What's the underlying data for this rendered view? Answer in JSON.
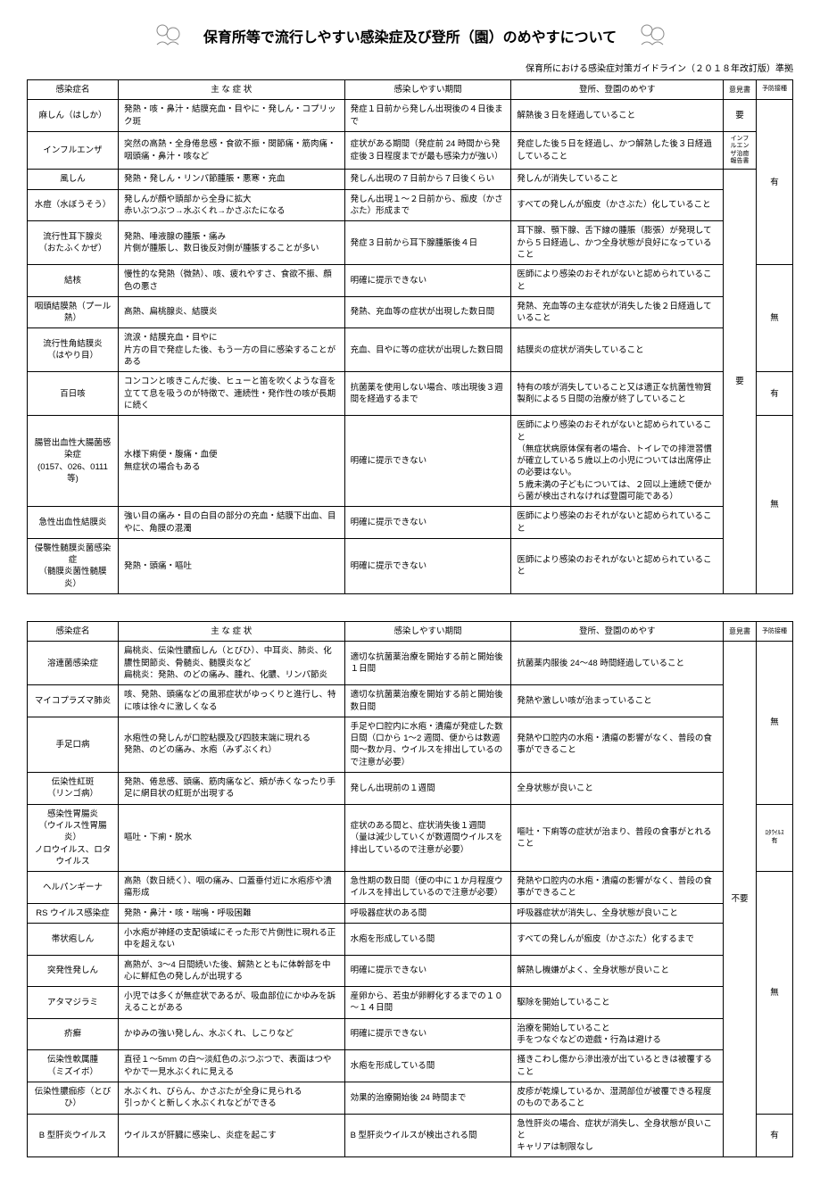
{
  "title": "保育所等で流行しやすい感染症及び登所（園）のめやすについて",
  "subtitle": "保育所における感染症対策ガイドライン（２０１８年改訂版）準拠",
  "headers": {
    "name": "感染症名",
    "symptom": "主 な 症 状",
    "period": "感染しやすい期間",
    "return": "登所、登園のめやす",
    "cert": "意見書",
    "vacc": "予防接種"
  },
  "table1": [
    {
      "name": "麻しん（はしか）",
      "symptom": "発熱・咳・鼻汁・結膜充血・目やに・発しん・コプリック斑",
      "period": "発症１日前から発しん出現後の４日後まで",
      "return": "解熱後３日を経過していること",
      "cert": "要",
      "vacc_note": ""
    },
    {
      "name": "インフルエンザ",
      "symptom": "突然の高熱・全身倦怠感・食欲不振・関節痛・筋肉痛・咽頭痛・鼻汁・咳など",
      "period": "症状がある期間（発症前 24 時間から発症後３日程度までが最も感染力が強い）",
      "return": "発症した後５日を経過し、かつ解熱した後３日経過していること",
      "vacc_note": "インフルエンザ治癒報告書"
    },
    {
      "name": "風しん",
      "symptom": "発熱・発しん・リンパ節腫脹・悪寒・充血",
      "period": "発しん出現の７日前から７日後くらい",
      "return": "発しんが消失していること"
    },
    {
      "name": "水痘（水ぼうそう）",
      "symptom": "発しんが顔や頭部から全身に拡大\n赤いぶつぶつ→水ぶくれ→かさぶたになる",
      "period": "発しん出現１～２日前から、痂皮（かさぶた）形成まで",
      "return": "すべての発しんが痂皮（かさぶた）化していること",
      "vacc": "有"
    },
    {
      "name": "流行性耳下腺炎\n（おたふくかぜ）",
      "symptom": "発熱、唾液腺の腫脹・痛み\n片側が腫脹し、数日後反対側が腫脹することが多い",
      "period": "発症３日前から耳下腺腫脹後４日",
      "return": "耳下腺、顎下腺、舌下線の腫脹（膨張）が発現してから５日経過し、かつ全身状態が良好になっていること"
    },
    {
      "name": "結核",
      "symptom": "慢性的な発熱（微熱）、咳、疲れやすさ、食欲不振、顔色の悪さ",
      "period": "明確に提示できない",
      "return": "医師により感染のおそれがないと認められていること"
    },
    {
      "name": "咽頭結膜熱（プール熱）",
      "symptom": "高熱、扁桃腺炎、結膜炎",
      "period": "発熱、充血等の症状が出現した数日間",
      "return": "発熱、充血等の主な症状が消失した後２日経過していること",
      "vacc": "無"
    },
    {
      "name": "流行性角結膜炎\n（はやり目）",
      "symptom": "流涙・結膜充血・目やに\n片方の目で発症した後、もう一方の目に感染することがある",
      "period": "充血、目やに等の症状が出現した数日間",
      "return": "結膜炎の症状が消失していること",
      "cert": "要"
    },
    {
      "name": "百日咳",
      "symptom": "コンコンと咳きこんだ後、ヒューと笛を吹くような音を立てて息を吸うのが特徴で、連続性・発作性の咳が長期に続く",
      "period": "抗菌薬を使用しない場合、咳出現後３週間を経過するまで",
      "return": "特有の咳が消失していること又は適正な抗菌性物質製剤による５日間の治療が終了していること",
      "vacc": "有"
    },
    {
      "name": "腸管出血性大腸菌感染症\n(0157、026、0111 等)",
      "symptom": "水様下痢便・腹痛・血便\n無症状の場合もある",
      "period": "明確に提示できない",
      "return": "医師により感染のおそれがないと認められていること\n（無症状病原体保有者の場合、トイレでの排泄習慣が確立している５歳以上の小児については出席停止の必要はない。\n５歳未満の子どもについては、２回以上連続で便から菌が検出されなければ登園可能である）",
      "vacc": "無"
    },
    {
      "name": "急性出血性結膜炎",
      "symptom": "強い目の痛み・目の白目の部分の充血・結膜下出血、目やに、角膜の混濁",
      "period": "明確に提示できない",
      "return": "医師により感染のおそれがないと認められていること"
    },
    {
      "name": "侵襲性髄膜炎菌感染症\n（髄膜炎菌性髄膜炎）",
      "symptom": "発熱・頭痛・嘔吐",
      "period": "明確に提示できない",
      "return": "医師により感染のおそれがないと認められていること"
    }
  ],
  "table2": [
    {
      "name": "溶連菌感染症",
      "symptom": "扁桃炎、伝染性膿痂しん（とびひ）、中耳炎、肺炎、化膿性関節炎、骨髄炎、髄膜炎など\n扁桃炎：発熱、のどの痛み、腫れ、化膿、リンパ節炎",
      "period": "適切な抗菌薬治療を開始する前と開始後１日間",
      "return": "抗菌薬内服後 24～48 時間経過していること"
    },
    {
      "name": "マイコプラズマ肺炎",
      "symptom": "咳、発熱、頭痛などの風邪症状がゆっくりと進行し、特に咳は徐々に激しくなる",
      "period": "適切な抗菌薬治療を開始する前と開始後数日間",
      "return": "発熱や激しい咳が治まっていること",
      "vacc": "無"
    },
    {
      "name": "手足口病",
      "symptom": "水疱性の発しんが口腔粘膜及び四肢末端に現れる\n発熱、のどの痛み、水疱（みずぶくれ）",
      "period": "手足や口腔内に水疱・潰瘍が発症した数日間（口から 1～2 週間、便からは数週間～数か月、ウイルスを排出しているので注意が必要）",
      "return": "発熱や口腔内の水疱・潰瘍の影響がなく、普段の食事ができること"
    },
    {
      "name": "伝染性紅斑\n（リンゴ病）",
      "symptom": "発熱、倦怠感、頭痛、筋肉痛など、頬が赤くなったり手足に網目状の紅斑が出現する",
      "period": "発しん出現前の１週間",
      "return": "全身状態が良いこと"
    },
    {
      "name": "感染性胃腸炎\n（ウイルス性胃腸炎）\nノロウイルス、ロタウイルス",
      "symptom": "嘔吐・下痢・脱水",
      "period": "症状のある間と、症状消失後１週間\n（量は減少していくが数週間ウイルスを排出しているので注意が必要）",
      "return": "嘔吐・下痢等の症状が治まり、普段の食事がとれること",
      "cert": "不要",
      "vacc_note": "ﾛﾀｳｲﾙｽ\n有"
    },
    {
      "name": "ヘルパンギーナ",
      "symptom": "高熱（数日続く）、咽の痛み、口蓋垂付近に水疱疹や潰瘍形成",
      "period": "急性期の数日間（便の中に１か月程度ウイルスを排出しているので注意が必要）",
      "return": "発熱や口腔内の水疱・潰瘍の影響がなく、普段の食事ができること"
    },
    {
      "name": "RS ウイルス感染症",
      "symptom": "発熱・鼻汁・咳・喘鳴・呼吸困難",
      "period": "呼吸器症状のある間",
      "return": "呼吸器症状が消失し、全身状態が良いこと"
    },
    {
      "name": "帯状疱しん",
      "symptom": "小水疱が神経の支配領域にそった形で片側性に現れる正中を超えない",
      "period": "水疱を形成している間",
      "return": "すべての発しんが痂皮（かさぶた）化するまで"
    },
    {
      "name": "突発性発しん",
      "symptom": "高熱が、3～4 日間続いた後、解熱とともに体幹部を中心に鮮紅色の発しんが出現する",
      "period": "明確に提示できない",
      "return": "解熱し機嫌がよく、全身状態が良いこと",
      "vacc": "無"
    },
    {
      "name": "アタマジラミ",
      "symptom": "小児では多くが無症状であるが、吸血部位にかゆみを訴えることがある",
      "period": "産卵から、若虫が卵孵化するまでの１０～１４日間",
      "return": "駆除を開始していること"
    },
    {
      "name": "疥癬",
      "symptom": "かゆみの強い発しん、水ぶくれ、しこりなど",
      "period": "明確に提示できない",
      "return": "治療を開始していること\n手をつなぐなどの遊戯・行為は避ける"
    },
    {
      "name": "伝染性軟属腫\n（ミズイボ）",
      "symptom": "直径１～5mm の白～淡紅色のぶつぶつで、表面はつややかで一見水ぶくれに見える",
      "period": "水疱を形成している間",
      "return": "掻きこわし傷から滲出液が出ているときは被覆すること"
    },
    {
      "name": "伝染性膿痂疹（とびひ）",
      "symptom": "水ぶくれ、びらん、かさぶたが全身に見られる\n引っかくと新しく水ぶくれなどができる",
      "period": "効果的治療開始後 24 時間まで",
      "return": "皮疹が乾燥しているか、湿潤部位が被覆できる程度のものであること"
    },
    {
      "name": "B 型肝炎ウイルス",
      "symptom": "ウイルスが肝臓に感染し、炎症を起こす",
      "period": "B 型肝炎ウイルスが検出される間",
      "return": "急性肝炎の場合、症状が消失し、全身状態が良いこと\nキャリアは制限なし",
      "vacc": "有"
    }
  ]
}
